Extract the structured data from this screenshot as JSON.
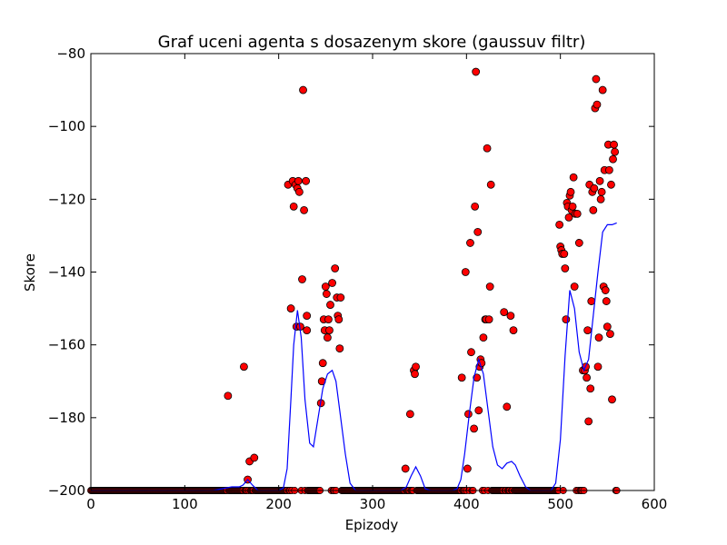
{
  "chart_data": {
    "type": "scatter",
    "title": "Graf uceni agenta s dosazenym skore (gaussuv filtr)",
    "xlabel": "Epizody",
    "ylabel": "Skore",
    "xlim": [
      0,
      600
    ],
    "ylim": [
      -200,
      -80
    ],
    "x_ticks": [
      0,
      100,
      200,
      300,
      400,
      500,
      600
    ],
    "x_tick_labels": [
      "0",
      "100",
      "200",
      "300",
      "400",
      "500",
      "600"
    ],
    "y_ticks": [
      -200,
      -180,
      -160,
      -140,
      -120,
      -100,
      -80
    ],
    "y_tick_labels": [
      "−200",
      "−180",
      "−160",
      "−140",
      "−120",
      "−100",
      "−80"
    ],
    "grid": false,
    "legend": "none",
    "colors": {
      "points": "#ff0000",
      "point_edge": "#000000",
      "line": "#0000ff"
    },
    "baseline_episodes": {
      "value": -200,
      "from": 0,
      "to": 560
    },
    "series": [
      {
        "kind": "scatter",
        "points": [
          [
            146,
            -174
          ],
          [
            163,
            -166
          ],
          [
            167,
            -197
          ],
          [
            169,
            -192
          ],
          [
            174,
            -191
          ],
          [
            210,
            -116
          ],
          [
            213,
            -150
          ],
          [
            215,
            -115
          ],
          [
            216,
            -122
          ],
          [
            218,
            -116
          ],
          [
            219,
            -155
          ],
          [
            220,
            -117
          ],
          [
            221,
            -115
          ],
          [
            222,
            -118
          ],
          [
            223,
            -155
          ],
          [
            225,
            -142
          ],
          [
            226,
            -90
          ],
          [
            227,
            -123
          ],
          [
            229,
            -115
          ],
          [
            230,
            -152
          ],
          [
            230,
            -156
          ],
          [
            245,
            -176
          ],
          [
            246,
            -170
          ],
          [
            247,
            -165
          ],
          [
            248,
            -153
          ],
          [
            249,
            -156
          ],
          [
            250,
            -144
          ],
          [
            251,
            -146
          ],
          [
            252,
            -158
          ],
          [
            253,
            -153
          ],
          [
            254,
            -156
          ],
          [
            255,
            -149
          ],
          [
            257,
            -143
          ],
          [
            260,
            -139
          ],
          [
            262,
            -147
          ],
          [
            263,
            -152
          ],
          [
            264,
            -153
          ],
          [
            265,
            -161
          ],
          [
            266,
            -147
          ],
          [
            335,
            -194
          ],
          [
            340,
            -179
          ],
          [
            344,
            -167
          ],
          [
            345,
            -168
          ],
          [
            346,
            -166
          ],
          [
            395,
            -169
          ],
          [
            399,
            -140
          ],
          [
            401,
            -194
          ],
          [
            402,
            -179
          ],
          [
            404,
            -132
          ],
          [
            405,
            -162
          ],
          [
            408,
            -183
          ],
          [
            409,
            -122
          ],
          [
            410,
            -85
          ],
          [
            411,
            -169
          ],
          [
            412,
            -129
          ],
          [
            413,
            -178
          ],
          [
            414,
            -166
          ],
          [
            415,
            -164
          ],
          [
            416,
            -165
          ],
          [
            418,
            -158
          ],
          [
            420,
            -153
          ],
          [
            421,
            -153
          ],
          [
            422,
            -106
          ],
          [
            424,
            -153
          ],
          [
            425,
            -144
          ],
          [
            426,
            -116
          ],
          [
            440,
            -151
          ],
          [
            443,
            -177
          ],
          [
            447,
            -152
          ],
          [
            450,
            -156
          ],
          [
            499,
            -127
          ],
          [
            500,
            -133
          ],
          [
            501,
            -134
          ],
          [
            502,
            -135
          ],
          [
            504,
            -135
          ],
          [
            505,
            -139
          ],
          [
            506,
            -153
          ],
          [
            507,
            -121
          ],
          [
            508,
            -122
          ],
          [
            509,
            -125
          ],
          [
            510,
            -119
          ],
          [
            511,
            -118
          ],
          [
            512,
            -123
          ],
          [
            513,
            -122
          ],
          [
            514,
            -114
          ],
          [
            515,
            -144
          ],
          [
            516,
            -124
          ],
          [
            518,
            -124
          ],
          [
            520,
            -132
          ],
          [
            524,
            -167
          ],
          [
            526,
            -167
          ],
          [
            527,
            -166
          ],
          [
            528,
            -169
          ],
          [
            529,
            -156
          ],
          [
            530,
            -181
          ],
          [
            531,
            -116
          ],
          [
            532,
            -172
          ],
          [
            533,
            -148
          ],
          [
            534,
            -118
          ],
          [
            535,
            -123
          ],
          [
            536,
            -117
          ],
          [
            537,
            -95
          ],
          [
            538,
            -87
          ],
          [
            539,
            -94
          ],
          [
            540,
            -166
          ],
          [
            541,
            -158
          ],
          [
            542,
            -115
          ],
          [
            543,
            -120
          ],
          [
            544,
            -118
          ],
          [
            545,
            -90
          ],
          [
            546,
            -144
          ],
          [
            547,
            -112
          ],
          [
            548,
            -145
          ],
          [
            549,
            -148
          ],
          [
            550,
            -155
          ],
          [
            551,
            -105
          ],
          [
            552,
            -112
          ],
          [
            553,
            -157
          ],
          [
            554,
            -116
          ],
          [
            555,
            -175
          ],
          [
            556,
            -109
          ],
          [
            557,
            -105
          ],
          [
            558,
            -107
          ]
        ]
      },
      {
        "kind": "line",
        "points": [
          [
            0,
            -200
          ],
          [
            130,
            -200
          ],
          [
            140,
            -199.5
          ],
          [
            150,
            -199
          ],
          [
            158,
            -199
          ],
          [
            162,
            -198.5
          ],
          [
            167,
            -197
          ],
          [
            172,
            -198.5
          ],
          [
            178,
            -200
          ],
          [
            200,
            -200
          ],
          [
            205,
            -199.3
          ],
          [
            209,
            -194
          ],
          [
            213,
            -175
          ],
          [
            216,
            -160
          ],
          [
            220,
            -150.5
          ],
          [
            224,
            -158
          ],
          [
            228,
            -175
          ],
          [
            233,
            -187
          ],
          [
            237,
            -188
          ],
          [
            242,
            -180
          ],
          [
            247,
            -172
          ],
          [
            252,
            -168
          ],
          [
            257,
            -167
          ],
          [
            261,
            -170
          ],
          [
            266,
            -180
          ],
          [
            271,
            -190
          ],
          [
            276,
            -198
          ],
          [
            282,
            -200
          ],
          [
            330,
            -200
          ],
          [
            336,
            -199
          ],
          [
            341,
            -196
          ],
          [
            346,
            -193.5
          ],
          [
            351,
            -196
          ],
          [
            356,
            -199.5
          ],
          [
            362,
            -200
          ],
          [
            385,
            -200
          ],
          [
            390,
            -199.5
          ],
          [
            394,
            -197
          ],
          [
            398,
            -190
          ],
          [
            403,
            -179
          ],
          [
            408,
            -169
          ],
          [
            413,
            -164
          ],
          [
            418,
            -168
          ],
          [
            423,
            -178
          ],
          [
            428,
            -188
          ],
          [
            433,
            -193
          ],
          [
            438,
            -194
          ],
          [
            443,
            -192.5
          ],
          [
            448,
            -192
          ],
          [
            452,
            -193
          ],
          [
            457,
            -196
          ],
          [
            463,
            -199
          ],
          [
            468,
            -200
          ],
          [
            490,
            -200
          ],
          [
            495,
            -198
          ],
          [
            500,
            -186
          ],
          [
            505,
            -163
          ],
          [
            510,
            -145
          ],
          [
            515,
            -150
          ],
          [
            520,
            -162
          ],
          [
            525,
            -167
          ],
          [
            530,
            -164
          ],
          [
            535,
            -152
          ],
          [
            540,
            -140
          ],
          [
            545,
            -129
          ],
          [
            550,
            -127
          ],
          [
            555,
            -127
          ],
          [
            560,
            -126.5
          ]
        ]
      }
    ]
  }
}
